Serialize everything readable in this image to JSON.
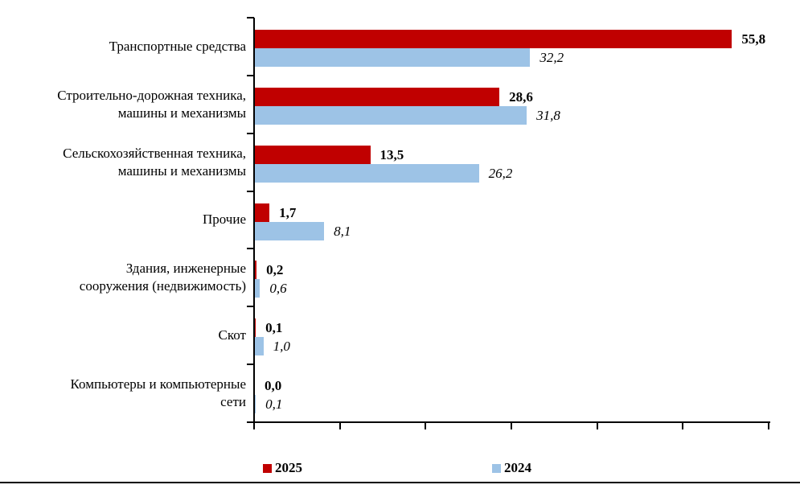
{
  "chart_data": {
    "type": "bar",
    "orientation": "horizontal",
    "title": "",
    "xlabel": "",
    "ylabel": "",
    "xlim": [
      0,
      60
    ],
    "x_tick_step": 10,
    "grid": false,
    "legend_position": "bottom",
    "categories": [
      [
        "Транспортные средства"
      ],
      [
        "Строительно-дорожная техника,",
        "машины и механизмы"
      ],
      [
        "Сельскохозяйственная техника,",
        "машины и механизмы"
      ],
      [
        "Прочие"
      ],
      [
        "Здания, инженерные",
        "сооружения (недвижимость)"
      ],
      [
        "Скот"
      ],
      [
        "Компьютеры и компьютерные",
        "сети"
      ]
    ],
    "series": [
      {
        "name": "2025",
        "color": "#C00000",
        "label_style": "bold",
        "values": [
          55.8,
          28.6,
          13.5,
          1.7,
          0.2,
          0.1,
          0.0
        ],
        "labels": [
          "55,8",
          "28,6",
          "13,5",
          "1,7",
          "0,2",
          "0,1",
          "0,0"
        ]
      },
      {
        "name": "2024",
        "color": "#9DC3E6",
        "label_style": "italic",
        "values": [
          32.2,
          31.8,
          26.2,
          8.1,
          0.6,
          1.0,
          0.1
        ],
        "labels": [
          "32,2",
          "31,8",
          "26,2",
          "8,1",
          "0,6",
          "1,0",
          "0,1"
        ]
      }
    ],
    "axis_color": "#000000",
    "text_color": "#000000"
  }
}
